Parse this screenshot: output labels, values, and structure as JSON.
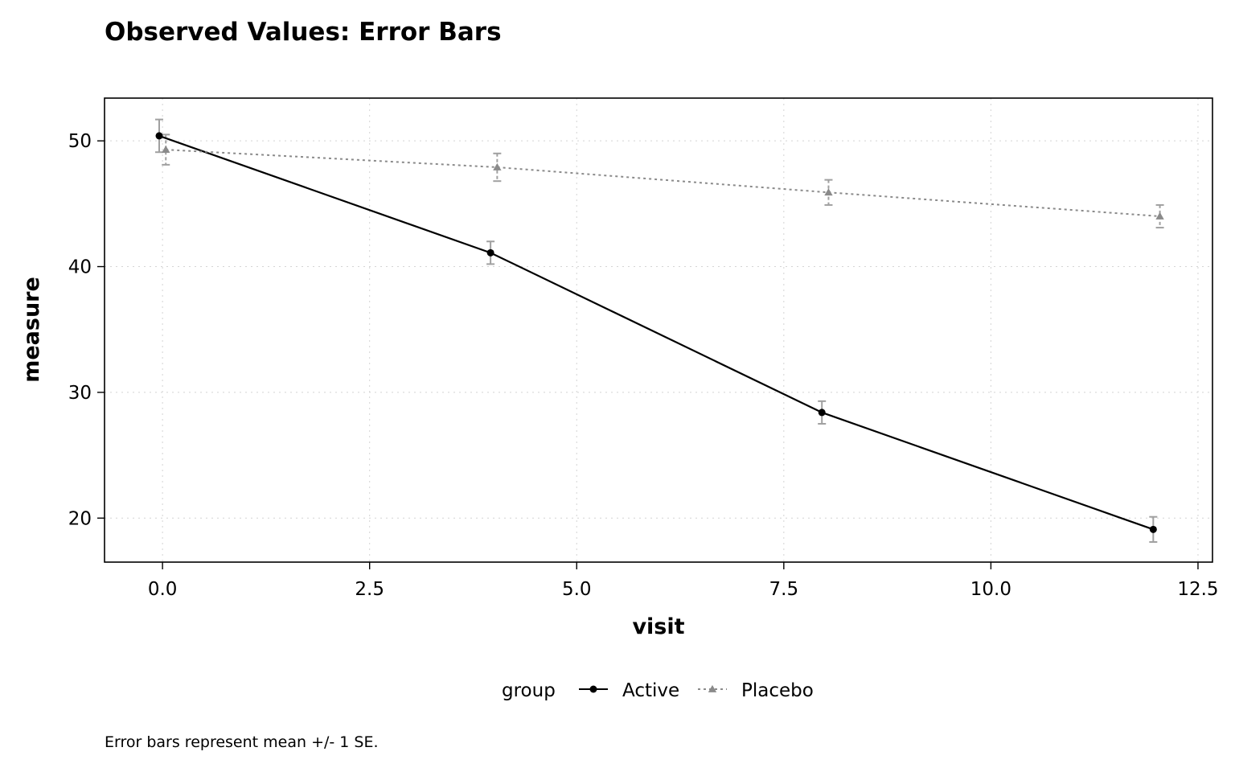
{
  "chart_data": {
    "type": "line",
    "title": "Observed Values: Error Bars",
    "xlabel": "visit",
    "ylabel": "measure",
    "caption": "Error bars represent mean +/- 1 SE.",
    "xlim": [
      -0.7,
      12.675
    ],
    "ylim": [
      16.5,
      53.4
    ],
    "x_ticks": [
      0.0,
      2.5,
      5.0,
      7.5,
      10.0,
      12.5
    ],
    "x_tick_labels": [
      "0.0",
      "2.5",
      "5.0",
      "7.5",
      "10.0",
      "12.5"
    ],
    "y_ticks": [
      20,
      30,
      40,
      50
    ],
    "y_tick_labels": [
      "20",
      "30",
      "40",
      "50"
    ],
    "grid": true,
    "legend": {
      "title": "group",
      "placement": "bottom",
      "entries": [
        "Active",
        "Placebo"
      ]
    },
    "series": [
      {
        "name": "Active",
        "color": "#000000",
        "marker": "circle",
        "linestyle": "solid",
        "x": [
          -0.04,
          3.96,
          7.96,
          11.96
        ],
        "y": [
          50.4,
          41.1,
          28.4,
          19.1
        ],
        "se": [
          1.3,
          0.9,
          0.9,
          1.0
        ]
      },
      {
        "name": "Placebo",
        "color": "#8a8a8a",
        "marker": "triangle",
        "linestyle": "dotted",
        "x": [
          0.04,
          4.04,
          8.04,
          12.04
        ],
        "y": [
          49.3,
          47.9,
          45.9,
          44.0
        ],
        "se": [
          1.2,
          1.1,
          1.0,
          0.9
        ]
      }
    ],
    "errorbar_color": "#a0a0a0"
  }
}
